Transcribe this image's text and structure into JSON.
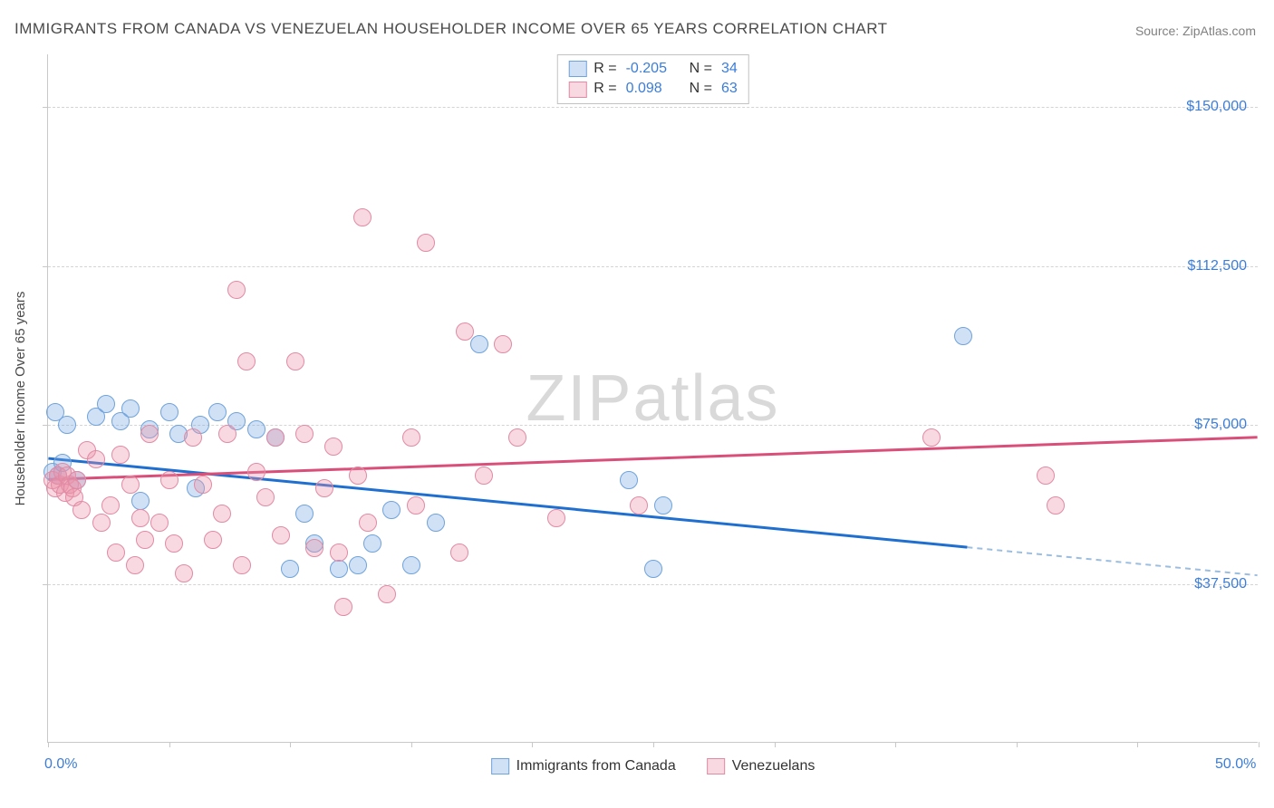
{
  "title": "IMMIGRANTS FROM CANADA VS VENEZUELAN HOUSEHOLDER INCOME OVER 65 YEARS CORRELATION CHART",
  "source_prefix": "Source: ",
  "source_name": "ZipAtlas.com",
  "yaxis_title": "Householder Income Over 65 years",
  "watermark": "ZIPatlas",
  "chart": {
    "type": "scatter",
    "xlim": [
      0,
      50
    ],
    "ylim": [
      0,
      162500
    ],
    "x_ticks": [
      0,
      5,
      10,
      15,
      20,
      25,
      30,
      35,
      40,
      45,
      50
    ],
    "y_gridlines": [
      {
        "value": 150000,
        "label": "$150,000"
      },
      {
        "value": 112500,
        "label": "$112,500"
      },
      {
        "value": 75000,
        "label": "$75,000"
      },
      {
        "value": 37500,
        "label": "$37,500"
      }
    ],
    "x_axis_labels": [
      {
        "value": 0,
        "label": "0.0%"
      },
      {
        "value": 50,
        "label": "50.0%"
      }
    ],
    "background_color": "#ffffff",
    "grid_color": "#d4d4d4",
    "axis_color": "#c8c8c8",
    "label_color": "#3b7dd8",
    "title_color": "#4a4a4a",
    "marker_radius": 10,
    "marker_stroke_width": 1.5,
    "trend_stroke_width": 3
  },
  "series": [
    {
      "id": "canada",
      "label": "Immigrants from Canada",
      "fill": "rgba(120,170,225,0.35)",
      "stroke": "#6fa3dc",
      "r_value": "-0.205",
      "n_value": "34",
      "trend": {
        "x0": 0,
        "y0": 67000,
        "x1": 38,
        "y1": 46000,
        "color": "#1f6fd0",
        "extrapolate_to_x": 50,
        "extrap_color": "#9bbde0"
      },
      "points": [
        [
          0.2,
          64000
        ],
        [
          0.4,
          63000
        ],
        [
          0.6,
          66000
        ],
        [
          0.3,
          78000
        ],
        [
          0.8,
          75000
        ],
        [
          1.2,
          62000
        ],
        [
          2.0,
          77000
        ],
        [
          2.4,
          80000
        ],
        [
          3.0,
          76000
        ],
        [
          3.4,
          79000
        ],
        [
          3.8,
          57000
        ],
        [
          4.2,
          74000
        ],
        [
          5.0,
          78000
        ],
        [
          5.4,
          73000
        ],
        [
          6.1,
          60000
        ],
        [
          6.3,
          75000
        ],
        [
          7.0,
          78000
        ],
        [
          7.8,
          76000
        ],
        [
          8.6,
          74000
        ],
        [
          9.4,
          72000
        ],
        [
          10.0,
          41000
        ],
        [
          10.6,
          54000
        ],
        [
          11.0,
          47000
        ],
        [
          12.0,
          41000
        ],
        [
          12.8,
          42000
        ],
        [
          13.4,
          47000
        ],
        [
          14.2,
          55000
        ],
        [
          15.0,
          42000
        ],
        [
          16.0,
          52000
        ],
        [
          17.8,
          94000
        ],
        [
          24.0,
          62000
        ],
        [
          25.0,
          41000
        ],
        [
          25.4,
          56000
        ],
        [
          37.8,
          96000
        ]
      ]
    },
    {
      "id": "venezuelans",
      "label": "Venezuelans",
      "fill": "rgba(235,145,170,0.35)",
      "stroke": "#e18aa4",
      "r_value": "0.098",
      "n_value": "63",
      "trend": {
        "x0": 0,
        "y0": 62000,
        "x1": 50,
        "y1": 72000,
        "color": "#d94f7a"
      },
      "points": [
        [
          0.2,
          62000
        ],
        [
          0.3,
          60000
        ],
        [
          0.4,
          63000
        ],
        [
          0.5,
          61000
        ],
        [
          0.6,
          64000
        ],
        [
          0.7,
          59000
        ],
        [
          0.8,
          63000
        ],
        [
          0.9,
          61000
        ],
        [
          1.0,
          60000
        ],
        [
          1.1,
          58000
        ],
        [
          1.2,
          62000
        ],
        [
          1.4,
          55000
        ],
        [
          1.6,
          69000
        ],
        [
          2.0,
          67000
        ],
        [
          2.2,
          52000
        ],
        [
          2.6,
          56000
        ],
        [
          2.8,
          45000
        ],
        [
          3.0,
          68000
        ],
        [
          3.4,
          61000
        ],
        [
          3.6,
          42000
        ],
        [
          3.8,
          53000
        ],
        [
          4.0,
          48000
        ],
        [
          4.2,
          73000
        ],
        [
          4.6,
          52000
        ],
        [
          5.0,
          62000
        ],
        [
          5.2,
          47000
        ],
        [
          5.6,
          40000
        ],
        [
          6.0,
          72000
        ],
        [
          6.4,
          61000
        ],
        [
          6.8,
          48000
        ],
        [
          7.2,
          54000
        ],
        [
          7.4,
          73000
        ],
        [
          7.8,
          107000
        ],
        [
          8.2,
          90000
        ],
        [
          8.6,
          64000
        ],
        [
          9.0,
          58000
        ],
        [
          9.4,
          72000
        ],
        [
          9.6,
          49000
        ],
        [
          10.2,
          90000
        ],
        [
          10.6,
          73000
        ],
        [
          11.0,
          46000
        ],
        [
          11.4,
          60000
        ],
        [
          11.8,
          70000
        ],
        [
          12.2,
          32000
        ],
        [
          12.0,
          45000
        ],
        [
          12.8,
          63000
        ],
        [
          13.2,
          52000
        ],
        [
          13.0,
          124000
        ],
        [
          15.0,
          72000
        ],
        [
          15.6,
          118000
        ],
        [
          15.2,
          56000
        ],
        [
          17.0,
          45000
        ],
        [
          17.2,
          97000
        ],
        [
          18.0,
          63000
        ],
        [
          18.8,
          94000
        ],
        [
          19.4,
          72000
        ],
        [
          21.0,
          53000
        ],
        [
          24.4,
          56000
        ],
        [
          36.5,
          72000
        ],
        [
          41.2,
          63000
        ],
        [
          41.6,
          56000
        ],
        [
          14.0,
          35000
        ],
        [
          8.0,
          42000
        ]
      ]
    }
  ],
  "legend_top": {
    "r_label": "R =",
    "n_label": "N ="
  }
}
